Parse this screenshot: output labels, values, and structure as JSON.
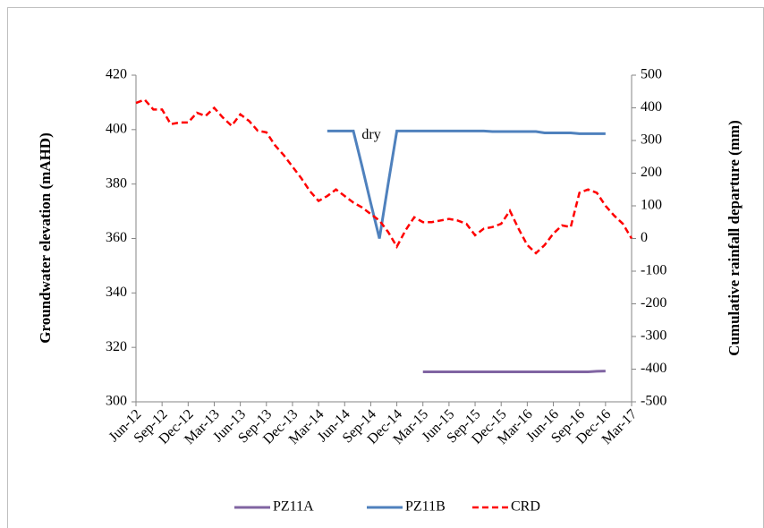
{
  "chart_data": {
    "type": "line",
    "y_label": "Groundwater elevation (mAHD)",
    "y2_label": "Cumulative rainfall departure (mm)",
    "x": [
      "2012-06",
      "2012-07",
      "2012-08",
      "2012-09",
      "2012-10",
      "2012-11",
      "2012-12",
      "2013-01",
      "2013-02",
      "2013-03",
      "2013-04",
      "2013-05",
      "2013-06",
      "2013-07",
      "2013-08",
      "2013-09",
      "2013-10",
      "2013-11",
      "2013-12",
      "2014-01",
      "2014-02",
      "2014-03",
      "2014-04",
      "2014-05",
      "2014-06",
      "2014-07",
      "2014-08",
      "2014-09",
      "2014-10",
      "2014-11",
      "2014-12",
      "2015-01",
      "2015-02",
      "2015-03",
      "2015-04",
      "2015-05",
      "2015-06",
      "2015-07",
      "2015-08",
      "2015-09",
      "2015-10",
      "2015-11",
      "2015-12",
      "2016-01",
      "2016-02",
      "2016-03",
      "2016-04",
      "2016-05",
      "2016-06",
      "2016-07",
      "2016-08",
      "2016-09",
      "2016-10",
      "2016-11",
      "2016-12",
      "2017-01",
      "2017-02",
      "2017-03"
    ],
    "xticks": [
      {
        "value": "2012-06",
        "label": "Jun-12"
      },
      {
        "value": "2012-09",
        "label": "Sep-12"
      },
      {
        "value": "2012-12",
        "label": "Dec-12"
      },
      {
        "value": "2013-03",
        "label": "Mar-13"
      },
      {
        "value": "2013-06",
        "label": "Jun-13"
      },
      {
        "value": "2013-09",
        "label": "Sep-13"
      },
      {
        "value": "2013-12",
        "label": "Dec-13"
      },
      {
        "value": "2014-03",
        "label": "Mar-14"
      },
      {
        "value": "2014-06",
        "label": "Jun-14"
      },
      {
        "value": "2014-09",
        "label": "Sep-14"
      },
      {
        "value": "2014-12",
        "label": "Dec-14"
      },
      {
        "value": "2015-03",
        "label": "Mar-15"
      },
      {
        "value": "2015-06",
        "label": "Jun-15"
      },
      {
        "value": "2015-09",
        "label": "Sep-15"
      },
      {
        "value": "2015-12",
        "label": "Dec-15"
      },
      {
        "value": "2016-03",
        "label": "Mar-16"
      },
      {
        "value": "2016-06",
        "label": "Jun-16"
      },
      {
        "value": "2016-09",
        "label": "Sep-16"
      },
      {
        "value": "2016-12",
        "label": "Dec-16"
      },
      {
        "value": "2017-03",
        "label": "Mar-17"
      }
    ],
    "ylim": [
      300,
      420
    ],
    "yticks": [
      300,
      320,
      340,
      360,
      380,
      400,
      420
    ],
    "y2lim": [
      -500,
      500
    ],
    "y2ticks": [
      -500,
      -400,
      -300,
      -200,
      -100,
      0,
      100,
      200,
      300,
      400,
      500
    ],
    "series": [
      {
        "name": "PZ11A",
        "color": "#8064a2",
        "dash": false,
        "values": [
          null,
          null,
          null,
          null,
          null,
          null,
          null,
          null,
          null,
          null,
          null,
          null,
          null,
          null,
          null,
          null,
          null,
          null,
          null,
          null,
          null,
          null,
          null,
          null,
          null,
          null,
          null,
          null,
          null,
          null,
          null,
          null,
          null,
          311,
          311,
          311,
          311,
          311,
          311,
          311,
          311,
          311,
          311,
          311,
          311,
          311,
          311,
          311,
          311,
          311,
          311,
          311,
          311,
          311.2,
          311.3,
          null,
          null,
          null
        ]
      },
      {
        "name": "PZ11B",
        "color": "#4f81bd",
        "dash": false,
        "values": [
          null,
          null,
          null,
          null,
          null,
          null,
          null,
          null,
          null,
          null,
          null,
          null,
          null,
          null,
          null,
          null,
          null,
          null,
          null,
          null,
          null,
          null,
          399.5,
          399.5,
          399.5,
          399.5,
          386.5,
          373,
          360,
          380,
          399.5,
          399.5,
          399.5,
          399.5,
          399.5,
          399.5,
          399.5,
          399.5,
          399.5,
          399.5,
          399.5,
          399.3,
          399.3,
          399.3,
          399.3,
          399.3,
          399.3,
          398.8,
          398.8,
          398.8,
          398.8,
          398.5,
          398.5,
          398.5,
          398.5,
          null,
          null,
          null
        ]
      },
      {
        "name": "CRD",
        "color": "#ff0000",
        "dash": true,
        "axis": "y2",
        "values": [
          415,
          425,
          395,
          395,
          350,
          355,
          355,
          385,
          375,
          400,
          370,
          345,
          380,
          360,
          330,
          325,
          285,
          255,
          220,
          185,
          145,
          115,
          130,
          150,
          130,
          110,
          95,
          75,
          55,
          20,
          -25,
          25,
          65,
          50,
          50,
          55,
          60,
          55,
          45,
          10,
          30,
          35,
          45,
          85,
          30,
          -20,
          -45,
          -20,
          15,
          40,
          35,
          140,
          150,
          140,
          100,
          70,
          45,
          0
        ]
      }
    ],
    "annotations": [
      {
        "text": "dry",
        "x": "2014-09",
        "y": 399.5
      }
    ]
  }
}
